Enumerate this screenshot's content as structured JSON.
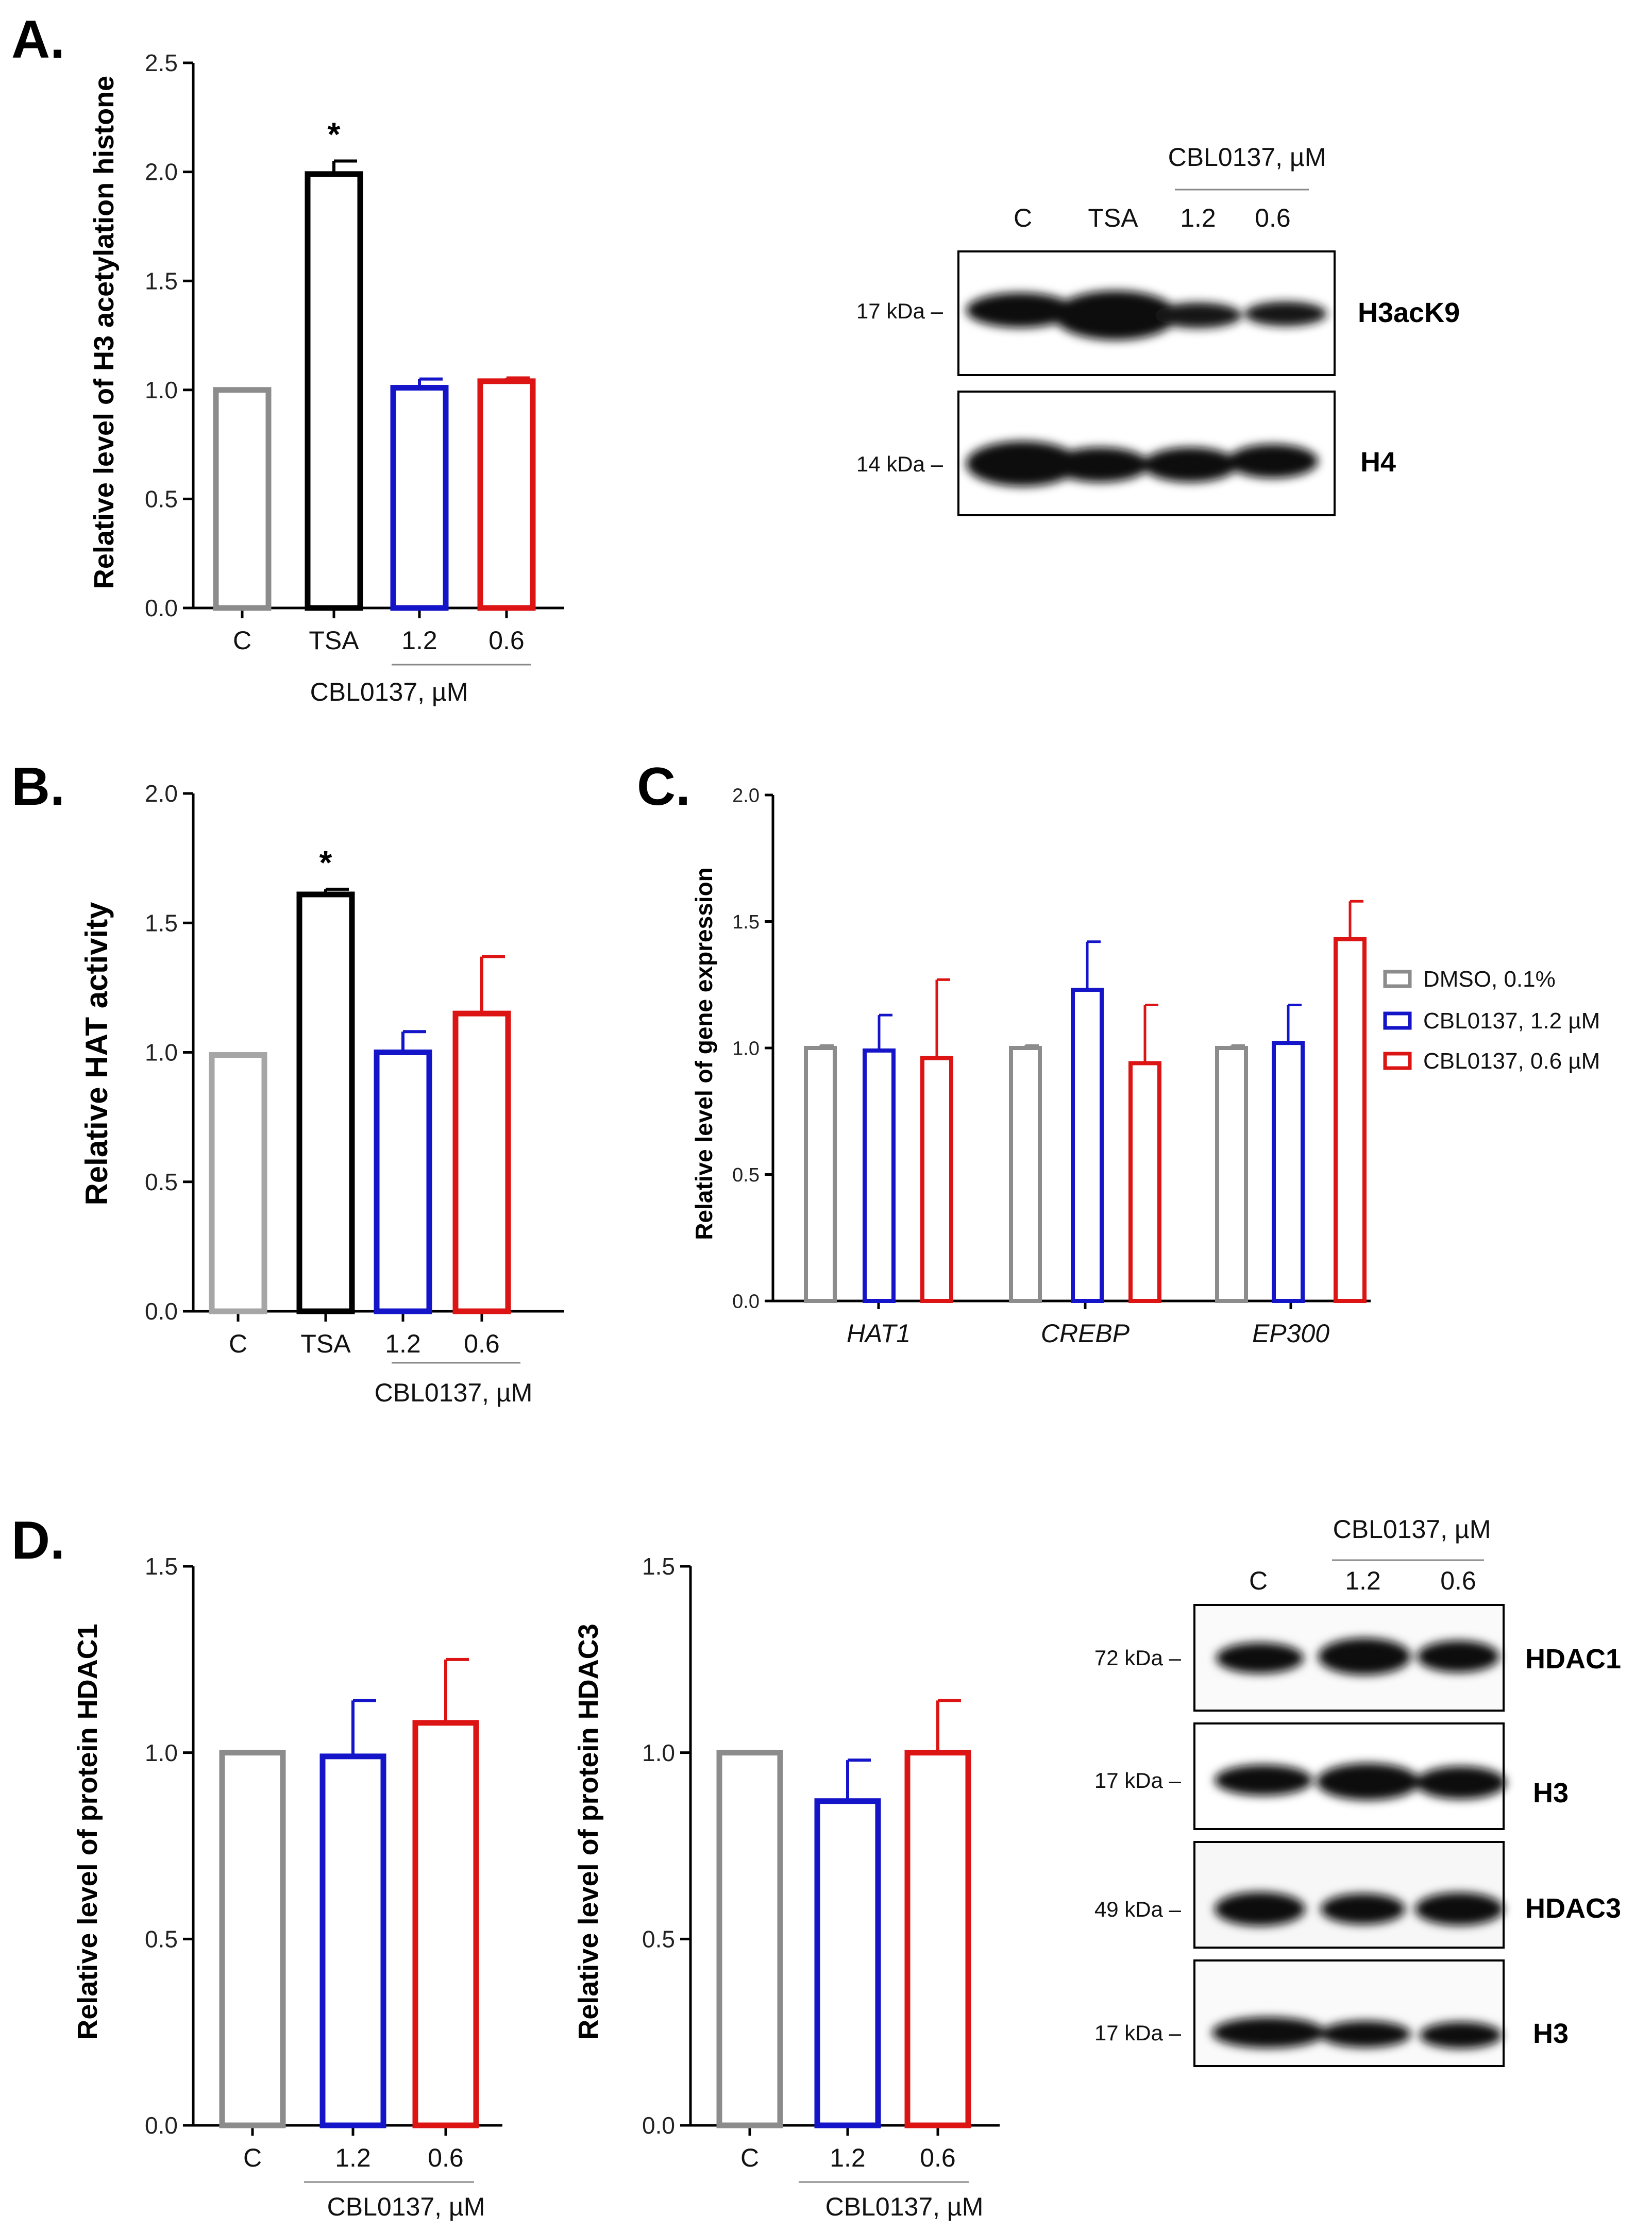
{
  "panels": {
    "A": {
      "letter": "A."
    },
    "B": {
      "letter": "B."
    },
    "C": {
      "letter": "C."
    },
    "D": {
      "letter": "D."
    }
  },
  "colors": {
    "C": "#8c8c8c",
    "TSA": "#000000",
    "c12": "#1414c8",
    "c06": "#dc1414"
  },
  "chart_data": [
    {
      "id": "A",
      "type": "bar",
      "ylabel": "Relative level of H3 acetylation histone",
      "categories": [
        "C",
        "TSA",
        "1.2",
        "0.6"
      ],
      "values": [
        1.0,
        1.99,
        1.01,
        1.04
      ],
      "errors": [
        0,
        0.06,
        0.04,
        0.015
      ],
      "colors": [
        "#8c8c8c",
        "#000000",
        "#1414c8",
        "#dc1414"
      ],
      "ylim": [
        0,
        2.5
      ],
      "yticks": [
        "0.0",
        "0.5",
        "1.0",
        "1.5",
        "2.0",
        "2.5"
      ],
      "group_label": "CBL0137, µM",
      "significance": [
        "",
        "*",
        "",
        ""
      ]
    },
    {
      "id": "B",
      "type": "bar",
      "ylabel": "Relative HAT activity",
      "categories": [
        "C",
        "TSA",
        "1.2",
        "0.6"
      ],
      "values": [
        0.99,
        1.61,
        1.0,
        1.15
      ],
      "errors": [
        0.005,
        0.02,
        0.08,
        0.22
      ],
      "colors": [
        "#a6a6a6",
        "#000000",
        "#1414c8",
        "#dc1414"
      ],
      "ylim": [
        0,
        2.0
      ],
      "yticks": [
        "0.0",
        "0.5",
        "1.0",
        "1.5",
        "2.0"
      ],
      "group_label": "CBL0137, µM",
      "significance": [
        "",
        "*",
        "",
        ""
      ]
    },
    {
      "id": "C",
      "type": "bar",
      "ylabel": "Relative level of gene expression",
      "categories": [
        "HAT1",
        "CREBP",
        "EP300"
      ],
      "series": [
        {
          "name": "DMSO, 0.1%",
          "color": "#8c8c8c",
          "values": [
            1.0,
            1.0,
            1.0
          ],
          "errors": [
            0.01,
            0.01,
            0.01
          ]
        },
        {
          "name": "CBL0137, 1.2 µM",
          "color": "#1414c8",
          "values": [
            0.99,
            1.23,
            1.02
          ],
          "errors": [
            0.14,
            0.19,
            0.15
          ]
        },
        {
          "name": "CBL0137, 0.6 µM",
          "color": "#dc1414",
          "values": [
            0.96,
            0.94,
            1.43
          ],
          "errors": [
            0.31,
            0.23,
            0.15
          ]
        }
      ],
      "ylim": [
        0,
        2.0
      ],
      "yticks": [
        "0.0",
        "0.5",
        "1.0",
        "1.5",
        "2.0"
      ]
    },
    {
      "id": "D1",
      "type": "bar",
      "ylabel": "Relative level of protein HDAC1",
      "categories": [
        "C",
        "1.2",
        "0.6"
      ],
      "values": [
        1.0,
        0.99,
        1.08
      ],
      "errors": [
        0,
        0.15,
        0.17
      ],
      "colors": [
        "#8c8c8c",
        "#1414c8",
        "#dc1414"
      ],
      "ylim": [
        0,
        1.5
      ],
      "yticks": [
        "0.0",
        "0.5",
        "1.0",
        "1.5"
      ],
      "group_label": "CBL0137, µM"
    },
    {
      "id": "D2",
      "type": "bar",
      "ylabel": "Relative level of protein HDAC3",
      "categories": [
        "C",
        "1.2",
        "0.6"
      ],
      "values": [
        1.0,
        0.87,
        1.0
      ],
      "errors": [
        0,
        0.11,
        0.14
      ],
      "colors": [
        "#8c8c8c",
        "#1414c8",
        "#dc1414"
      ],
      "ylim": [
        0,
        1.5
      ],
      "yticks": [
        "0.0",
        "0.5",
        "1.0",
        "1.5"
      ],
      "group_label": "CBL0137, µM"
    }
  ],
  "blotA": {
    "treatment": "CBL0137, µM",
    "lanes": [
      "C",
      "TSA",
      "1.2",
      "0.6"
    ],
    "rows": [
      {
        "marker": "17 kDa –",
        "protein": "H3acK9"
      },
      {
        "marker": "14 kDa –",
        "protein": "H4"
      }
    ]
  },
  "blotD": {
    "treatment": "CBL0137, µM",
    "lanes": [
      "C",
      "1.2",
      "0.6"
    ],
    "rows": [
      {
        "marker": "72 kDa –",
        "protein": "HDAC1"
      },
      {
        "marker": "17 kDa –",
        "protein": "H3"
      },
      {
        "marker": "49 kDa –",
        "protein": "HDAC3"
      },
      {
        "marker": "17 kDa –",
        "protein": "H3"
      }
    ]
  }
}
